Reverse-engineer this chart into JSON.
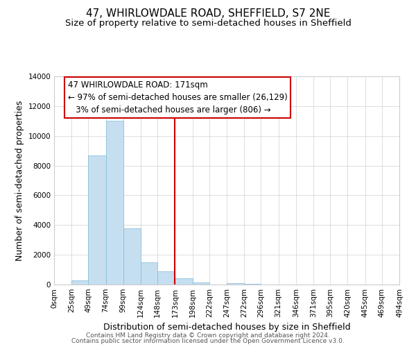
{
  "title": "47, WHIRLOWDALE ROAD, SHEFFIELD, S7 2NE",
  "subtitle": "Size of property relative to semi-detached houses in Sheffield",
  "xlabel": "Distribution of semi-detached houses by size in Sheffield",
  "ylabel": "Number of semi-detached properties",
  "footer_line1": "Contains HM Land Registry data © Crown copyright and database right 2024.",
  "footer_line2": "Contains public sector information licensed under the Open Government Licence v3.0.",
  "bin_edges": [
    0,
    25,
    49,
    74,
    99,
    124,
    148,
    173,
    198,
    222,
    247,
    272,
    296,
    321,
    346,
    371,
    395,
    420,
    445,
    469,
    494
  ],
  "bar_heights": [
    0,
    300,
    8700,
    11000,
    3800,
    1500,
    900,
    400,
    150,
    0,
    100,
    50,
    0,
    0,
    0,
    0,
    0,
    0,
    0,
    0
  ],
  "bar_color": "#c6dff0",
  "bar_edge_color": "#7fb8d8",
  "vline_x": 173,
  "vline_color": "#cc0000",
  "ylim": [
    0,
    14000
  ],
  "yticks": [
    0,
    2000,
    4000,
    6000,
    8000,
    10000,
    12000,
    14000
  ],
  "xtick_labels": [
    "0sqm",
    "25sqm",
    "49sqm",
    "74sqm",
    "99sqm",
    "124sqm",
    "148sqm",
    "173sqm",
    "198sqm",
    "222sqm",
    "247sqm",
    "272sqm",
    "296sqm",
    "321sqm",
    "346sqm",
    "371sqm",
    "395sqm",
    "420sqm",
    "445sqm",
    "469sqm",
    "494sqm"
  ],
  "annotation_line1": "47 WHIRLOWDALE ROAD: 171sqm",
  "annotation_line2": "← 97% of semi-detached houses are smaller (26,129)",
  "annotation_line3": "   3% of semi-detached houses are larger (806) →",
  "annotation_box_color": "#ffffff",
  "annotation_box_edge": "#cc0000",
  "title_fontsize": 11,
  "subtitle_fontsize": 9.5,
  "axis_label_fontsize": 9,
  "tick_label_fontsize": 7.5,
  "annotation_fontsize": 8.5,
  "footer_fontsize": 6.5,
  "background_color": "#ffffff"
}
